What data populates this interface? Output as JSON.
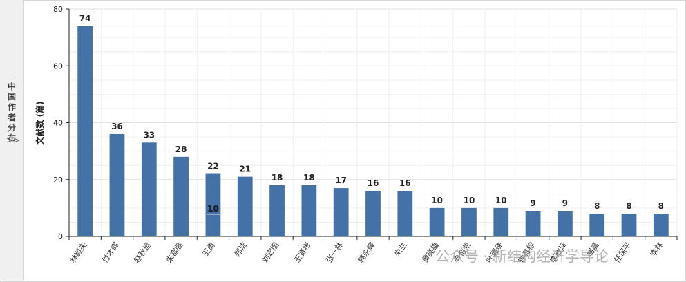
{
  "side_panel": {
    "label": "中国作者分布",
    "chevron": ">>"
  },
  "watermark": {
    "text": "公众号 · 新结构经济学导论"
  },
  "chart_data": {
    "type": "bar",
    "ylabel": "文献数 (篇)",
    "ylim": [
      0,
      80
    ],
    "yticks": [
      0,
      20,
      40,
      60,
      80
    ],
    "grid": true,
    "categories": [
      "林毅夫",
      "付才辉",
      "赵秋运",
      "朱富强",
      "王勇",
      "郑洁",
      "刘宏图",
      "王贤彬",
      "张一林",
      "韩永辉",
      "朱兰",
      "黄亮雄",
      "尹恒凯",
      "叶德珠",
      "钟昌标",
      "李欣泽",
      "胡晨",
      "任保平",
      "李林"
    ],
    "values": [
      74,
      36,
      33,
      28,
      22,
      21,
      18,
      18,
      17,
      16,
      16,
      10,
      10,
      10,
      9,
      9,
      8,
      8,
      8
    ],
    "annotations": [
      {
        "category": "王勇",
        "text": "10"
      }
    ],
    "bar_color": "#4472a8"
  }
}
